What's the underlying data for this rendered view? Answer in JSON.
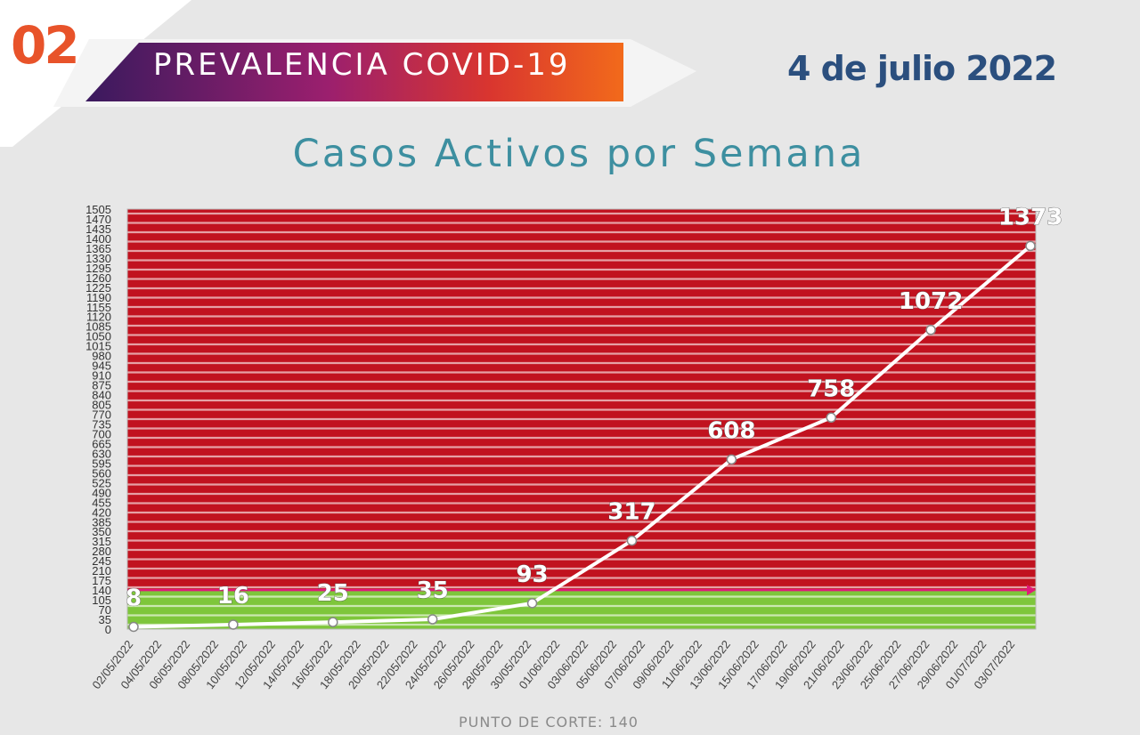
{
  "header": {
    "section_number": "02",
    "banner_title": "PREVALENCIA COVID-19",
    "date": "4 de julio 2022"
  },
  "chart_title": "Casos Activos por Semana",
  "footer": {
    "cutoff_note": "PUNTO DE CORTE: 140"
  },
  "colors": {
    "brand_orange": "#e8532a",
    "date_text": "#2b4f7e",
    "title_text": "#3d8fa0",
    "zone_above_cutoff": "#c1121f",
    "zone_below_cutoff": "#7ec63b",
    "cutoff_line": "#e0197a",
    "series_line": "#ffffff"
  },
  "chart_data": {
    "type": "line",
    "title": "Casos Activos por Semana",
    "xlabel": "",
    "ylabel": "",
    "ylim": [
      0,
      1505
    ],
    "y_ticks": [
      0,
      35,
      70,
      105,
      140,
      175,
      210,
      245,
      280,
      315,
      350,
      385,
      420,
      455,
      490,
      525,
      560,
      595,
      630,
      665,
      700,
      735,
      770,
      805,
      840,
      875,
      910,
      945,
      980,
      1015,
      1050,
      1085,
      1120,
      1155,
      1190,
      1225,
      1260,
      1295,
      1330,
      1365,
      1400,
      1435,
      1470,
      1505
    ],
    "categories": [
      "02/05/2022",
      "04/05/2022",
      "06/05/2022",
      "08/05/2022",
      "10/05/2022",
      "12/05/2022",
      "14/05/2022",
      "16/05/2022",
      "18/05/2022",
      "20/05/2022",
      "22/05/2022",
      "24/05/2022",
      "26/05/2022",
      "28/05/2022",
      "30/05/2022",
      "01/06/2022",
      "03/06/2022",
      "05/06/2022",
      "07/06/2022",
      "09/06/2022",
      "11/06/2022",
      "13/06/2022",
      "15/06/2022",
      "17/06/2022",
      "19/06/2022",
      "21/06/2022",
      "23/06/2022",
      "25/06/2022",
      "27/06/2022",
      "29/06/2022",
      "01/07/2022",
      "03/07/2022"
    ],
    "x_range_days": [
      0,
      63
    ],
    "cutoff": 140,
    "series": [
      {
        "name": "Casos activos",
        "points": [
          {
            "day": 0,
            "value": 8,
            "label": "8"
          },
          {
            "day": 7,
            "value": 16,
            "label": "16"
          },
          {
            "day": 14,
            "value": 25,
            "label": "25"
          },
          {
            "day": 21,
            "value": 35,
            "label": "35"
          },
          {
            "day": 28,
            "value": 93,
            "label": "93"
          },
          {
            "day": 35,
            "value": 317,
            "label": "317"
          },
          {
            "day": 42,
            "value": 608,
            "label": "608"
          },
          {
            "day": 49,
            "value": 758,
            "label": "758"
          },
          {
            "day": 56,
            "value": 1072,
            "label": "1072"
          },
          {
            "day": 63,
            "value": 1373,
            "label": "1373"
          }
        ]
      }
    ]
  }
}
